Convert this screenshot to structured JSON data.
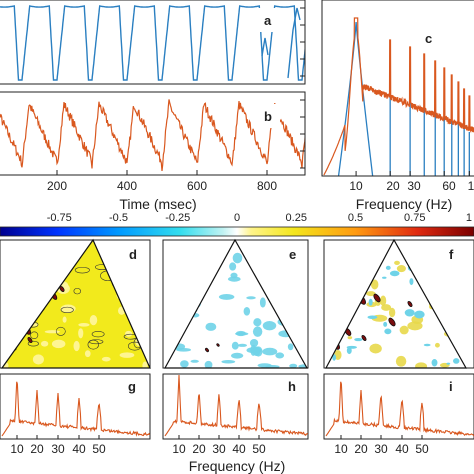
{
  "colors": {
    "blue": "#2a7fc1",
    "orange": "#d9581f",
    "frame": "#222222",
    "dark_red": "#7a0d0d"
  },
  "chart_data": [
    {
      "panel": "a",
      "type": "line",
      "series": [
        {
          "color": "#2a7fc1",
          "period_ms": 100,
          "samples": 2000
        }
      ],
      "xlim": [
        0,
        1000
      ],
      "xticks": [
        "200",
        "400",
        "600",
        "800"
      ],
      "grid": false
    },
    {
      "panel": "b",
      "type": "line",
      "series": [
        {
          "color": "#d9581f",
          "period_ms": 100,
          "samples": 2000
        }
      ],
      "xlim": [
        0,
        1000
      ],
      "xticks": [
        "200",
        "400",
        "600",
        "800"
      ],
      "xlabel": "Time (msec)",
      "grid": false
    },
    {
      "panel": "c",
      "type": "line",
      "x_scale": "log",
      "xlim": [
        5,
        110
      ],
      "xticks": [
        "10",
        "20",
        "30",
        "60",
        "1"
      ],
      "xlabel": "Frequency (Hz)",
      "series": [
        {
          "color": "#2a7fc1",
          "peaks_hz": [
            10,
            20,
            30,
            40,
            50,
            60,
            70,
            80,
            90,
            100
          ]
        },
        {
          "color": "#d9581f",
          "peaks_hz": [
            10,
            20,
            30,
            40,
            50,
            60,
            70,
            80,
            90,
            100
          ]
        }
      ],
      "grid": false
    },
    {
      "type": "heatmap",
      "role": "colorbar",
      "range": [
        -1,
        1
      ],
      "tick_labels": [
        "-0.75",
        "-0.5",
        "-0.25",
        "0",
        "0.25",
        "0.5",
        "0.75",
        "1"
      ],
      "tick_values": [
        -0.75,
        -0.5,
        -0.25,
        0,
        0.25,
        0.5,
        0.75,
        1
      ]
    },
    {
      "panel": "d",
      "type": "heatmap",
      "shape": "triangle",
      "background": "#f2ea1c",
      "speckle": "#f5d54a"
    },
    {
      "panel": "e",
      "type": "heatmap",
      "shape": "triangle",
      "background": "#ffffff",
      "speckle": "#6fd3e8"
    },
    {
      "panel": "f",
      "type": "heatmap",
      "shape": "triangle",
      "background": "#ffffff",
      "speckle": "#e8d84a"
    },
    {
      "panel": "g",
      "type": "line",
      "xticks": [
        "10",
        "20",
        "30",
        "40",
        "50"
      ],
      "series": [
        {
          "color": "#d9581f",
          "peaks_hz": [
            10,
            20,
            30,
            40,
            50
          ]
        }
      ]
    },
    {
      "panel": "h",
      "type": "line",
      "xticks": [
        "10",
        "20",
        "30",
        "40",
        "50"
      ],
      "series": [
        {
          "color": "#d9581f",
          "peaks_hz": [
            10,
            20,
            30,
            40,
            50
          ]
        }
      ]
    },
    {
      "panel": "i",
      "type": "line",
      "xticks": [
        "10",
        "20",
        "30",
        "40",
        "50"
      ],
      "series": [
        {
          "color": "#d9581f",
          "peaks_hz": [
            10,
            20,
            30,
            40,
            50
          ]
        }
      ]
    },
    {
      "role": "shared-xlabel",
      "xlabel": "Frequency (Hz)"
    }
  ],
  "panels": {
    "a": {
      "letter": "a"
    },
    "b": {
      "letter": "b",
      "xticks": [
        "200",
        "400",
        "600",
        "800"
      ],
      "xlabel": "Time (msec)"
    },
    "c": {
      "letter": "c",
      "xticks": [
        "10",
        "20",
        "30",
        "60",
        "1"
      ],
      "xlabel": "Frequency (Hz)"
    },
    "d": {
      "letter": "d"
    },
    "e": {
      "letter": "e"
    },
    "f": {
      "letter": "f"
    },
    "g": {
      "letter": "g",
      "xticks": [
        "10",
        "20",
        "30",
        "40",
        "50"
      ]
    },
    "h": {
      "letter": "h",
      "xticks": [
        "10",
        "20",
        "30",
        "40",
        "50"
      ]
    },
    "i": {
      "letter": "i",
      "xticks": [
        "10",
        "20",
        "30",
        "40",
        "50"
      ]
    },
    "bottom": {
      "xlabel": "Frequency (Hz)"
    }
  },
  "colorbar": {
    "labels": [
      "-0.75",
      "-0.5",
      "-0.25",
      "0",
      "0.25",
      "0.5",
      "0.75",
      "1"
    ]
  }
}
